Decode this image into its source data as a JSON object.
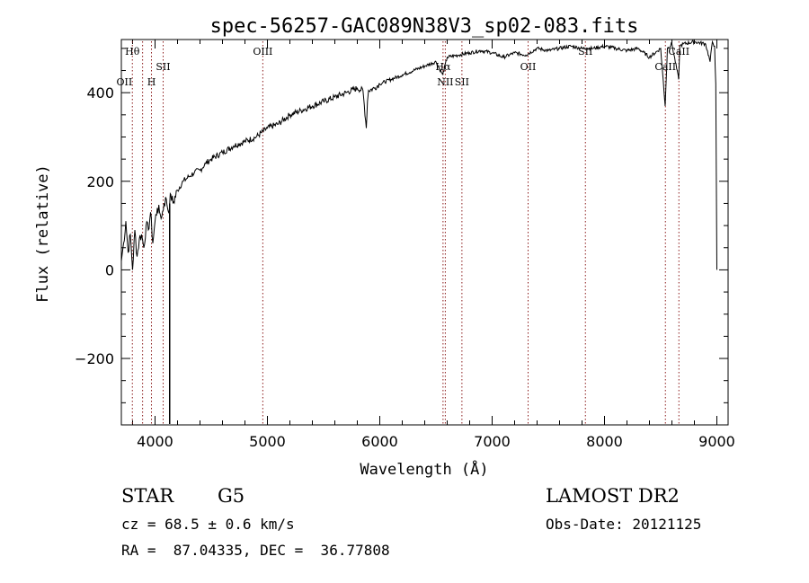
{
  "chart_data": {
    "type": "line",
    "title": "spec-56257-GAC089N38V3_sp02-083.fits",
    "xlabel": "Wavelength (Å)",
    "ylabel": "Flux (relative)",
    "xlim": [
      3700,
      9100
    ],
    "ylim": [
      -350,
      520
    ],
    "xticks": [
      4000,
      5000,
      6000,
      7000,
      8000,
      9000
    ],
    "yticks": [
      -200,
      0,
      200,
      400
    ],
    "grid": false,
    "series": [
      {
        "x": [
          3700,
          3720,
          3740,
          3760,
          3780,
          3800,
          3820,
          3840,
          3860,
          3880,
          3900,
          3920,
          3940,
          3960,
          3980,
          4000,
          4020,
          4040,
          4060,
          4080,
          4100,
          4120,
          4130,
          4140,
          4160,
          4200,
          4250,
          4300,
          4350,
          4400,
          4450,
          4500,
          4600,
          4700,
          4800,
          4900,
          5000,
          5100,
          5200,
          5300,
          5400,
          5500,
          5600,
          5700,
          5800,
          5850,
          5880,
          5890,
          5900,
          5950,
          6000,
          6100,
          6200,
          6300,
          6400,
          6500,
          6560,
          6600,
          6700,
          6800,
          6900,
          7000,
          7100,
          7200,
          7300,
          7400,
          7500,
          7600,
          7700,
          7800,
          7900,
          8000,
          8100,
          8200,
          8300,
          8400,
          8500,
          8540,
          8560,
          8600,
          8660,
          8670,
          8700,
          8800,
          8900,
          8940,
          8960,
          8980,
          8990,
          9000
        ],
        "y": [
          20,
          60,
          110,
          40,
          80,
          0,
          90,
          30,
          70,
          80,
          50,
          100,
          90,
          130,
          60,
          110,
          140,
          130,
          120,
          150,
          160,
          130,
          150,
          170,
          150,
          180,
          200,
          210,
          220,
          225,
          240,
          250,
          265,
          280,
          290,
          300,
          320,
          330,
          350,
          360,
          370,
          380,
          390,
          400,
          410,
          405,
          320,
          380,
          405,
          410,
          420,
          430,
          440,
          450,
          460,
          470,
          440,
          480,
          485,
          490,
          495,
          490,
          480,
          490,
          485,
          500,
          495,
          500,
          505,
          500,
          500,
          505,
          500,
          495,
          500,
          480,
          500,
          370,
          500,
          510,
          430,
          505,
          510,
          515,
          510,
          470,
          515,
          505,
          420,
          0
        ]
      }
    ],
    "line_markers": [
      {
        "label": "Hθ",
        "x": 3798,
        "row": "upper"
      },
      {
        "label": "OII",
        "x": 3727,
        "row": "lower"
      },
      {
        "label": "H",
        "x": 3968,
        "row": "lower"
      },
      {
        "label": "SII",
        "x": 4072,
        "row": "middle"
      },
      {
        "label": "OIII",
        "x": 4959,
        "row": "upper"
      },
      {
        "label": "Hα",
        "x": 6563,
        "row": "middle"
      },
      {
        "label": "NII",
        "x": 6583,
        "row": "lower"
      },
      {
        "label": "SII",
        "x": 6731,
        "row": "lower"
      },
      {
        "label": "OII",
        "x": 7320,
        "row": "middle"
      },
      {
        "label": "SII",
        "x": 7830,
        "row": "upper"
      },
      {
        "label": "CaII",
        "x": 8542,
        "row": "middle"
      },
      {
        "label": "CaII",
        "x": 8662,
        "row": "upper"
      }
    ],
    "marker_lines_x": [
      3798,
      3889,
      3968,
      4072,
      4959,
      6563,
      6583,
      6731,
      7320,
      7830,
      8542,
      8662
    ]
  },
  "info": {
    "class": "STAR",
    "subclass": "G5",
    "survey": "LAMOST DR2",
    "cz": "cz = 68.5 ± 0.6 km/s",
    "obsdate": "Obs-Date: 20121125",
    "radec": "RA =  87.04335, DEC =  36.77808"
  }
}
